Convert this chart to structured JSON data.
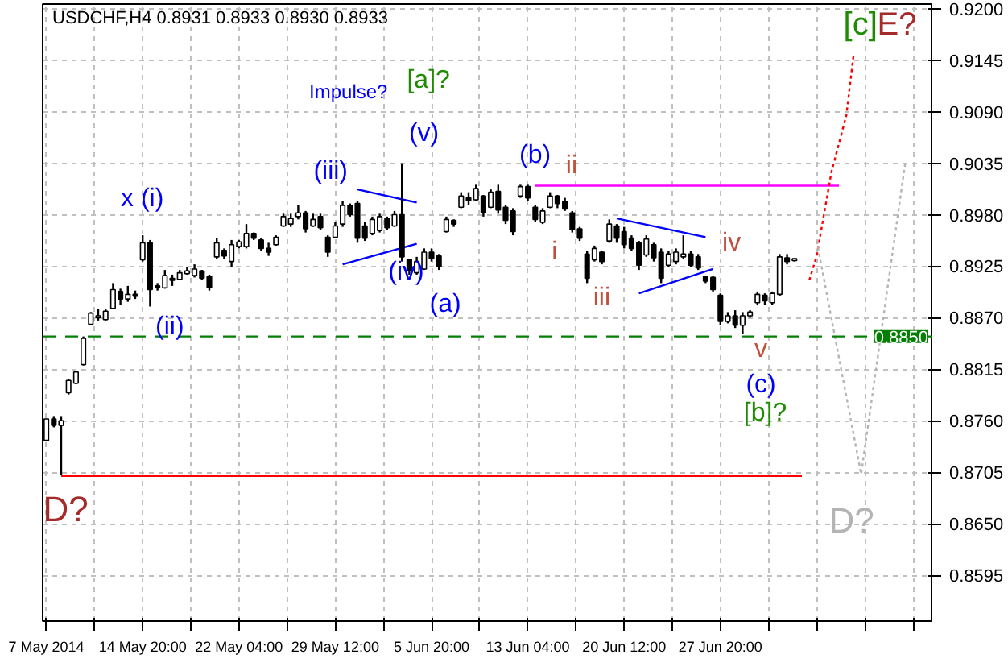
{
  "chart_data": {
    "type": "candlestick",
    "title": "USDCHF,H4  0.8931 0.8933 0.8930 0.8933",
    "categories": [
      "7 May 2014",
      null,
      null,
      null,
      null,
      null,
      null,
      null,
      null,
      null,
      null,
      null,
      null,
      "14 May 20:00",
      null,
      null,
      null,
      null,
      null,
      null,
      null,
      null,
      null,
      null,
      null,
      null,
      "22 May 04:00",
      null,
      null,
      null,
      null,
      null,
      null,
      null,
      null,
      null,
      null,
      null,
      null,
      "29 May 12:00",
      null,
      null,
      null,
      null,
      null,
      null,
      null,
      null,
      null,
      null,
      null,
      null,
      "5 Jun 20:00",
      null,
      null,
      null,
      null,
      null,
      null,
      null,
      null,
      null,
      null,
      null,
      null,
      "13 Jun 04:00",
      null,
      null,
      null,
      null,
      null,
      null,
      null,
      null,
      null,
      null,
      null,
      null,
      "20 Jun 12:00",
      null,
      null,
      null,
      null,
      null,
      null,
      null,
      null,
      null,
      null,
      null,
      null,
      "27 Jun 20:00",
      null,
      null,
      null,
      null,
      null,
      null,
      null,
      null,
      null,
      null,
      null,
      null,
      null,
      null,
      null,
      null,
      null,
      null,
      null,
      null,
      null,
      null,
      null,
      null,
      null,
      null,
      null,
      null
    ],
    "ohlc": [
      [
        0.8739,
        0.8762,
        0.8739,
        0.8762
      ],
      [
        0.8762,
        0.8765,
        0.8753,
        0.8755
      ],
      [
        0.8755,
        0.8765,
        0.8702,
        0.876
      ],
      [
        0.879,
        0.8805,
        0.8788,
        0.8803
      ],
      [
        0.88,
        0.8813,
        0.8799,
        0.8812
      ],
      [
        0.882,
        0.885,
        0.8819,
        0.8848
      ],
      [
        0.8863,
        0.8876,
        0.8862,
        0.8875
      ],
      [
        0.887,
        0.8879,
        0.8867,
        0.8872
      ],
      [
        0.8868,
        0.8879,
        0.8867,
        0.8877
      ],
      [
        0.888,
        0.8907,
        0.8879,
        0.89
      ],
      [
        0.8898,
        0.8901,
        0.8884,
        0.889
      ],
      [
        0.889,
        0.8904,
        0.8887,
        0.8895
      ],
      [
        0.8895,
        0.8899,
        0.889,
        0.8893
      ],
      [
        0.8932,
        0.8958,
        0.893,
        0.895
      ],
      [
        0.895,
        0.8953,
        0.8882,
        0.89
      ],
      [
        0.8904,
        0.8907,
        0.8899,
        0.8902
      ],
      [
        0.8902,
        0.8921,
        0.8901,
        0.8915
      ],
      [
        0.8912,
        0.8916,
        0.8904,
        0.891
      ],
      [
        0.8911,
        0.8921,
        0.891,
        0.8918
      ],
      [
        0.8917,
        0.8924,
        0.8916,
        0.892
      ],
      [
        0.8915,
        0.8927,
        0.8913,
        0.8922
      ],
      [
        0.892,
        0.8921,
        0.891,
        0.8912
      ],
      [
        0.8914,
        0.8916,
        0.8899,
        0.8902
      ],
      [
        0.8935,
        0.8955,
        0.8933,
        0.895
      ],
      [
        0.8942,
        0.8944,
        0.8933,
        0.8936
      ],
      [
        0.893,
        0.8953,
        0.8924,
        0.8948
      ],
      [
        0.8946,
        0.8953,
        0.8944,
        0.8951
      ],
      [
        0.8946,
        0.897,
        0.8944,
        0.896
      ],
      [
        0.896,
        0.8961,
        0.8953,
        0.8955
      ],
      [
        0.8953,
        0.8955,
        0.8941,
        0.8944
      ],
      [
        0.8944,
        0.895,
        0.8936,
        0.894
      ],
      [
        0.8948,
        0.8958,
        0.8947,
        0.8956
      ],
      [
        0.8968,
        0.8981,
        0.8967,
        0.8978
      ],
      [
        0.897,
        0.8981,
        0.8967,
        0.8976
      ],
      [
        0.8978,
        0.899,
        0.8975,
        0.8982
      ],
      [
        0.8982,
        0.8984,
        0.8961,
        0.8965
      ],
      [
        0.8968,
        0.8981,
        0.8967,
        0.8975
      ],
      [
        0.8978,
        0.8981,
        0.8964,
        0.8966
      ],
      [
        0.8956,
        0.8958,
        0.8935,
        0.894
      ],
      [
        0.8956,
        0.8972,
        0.8955,
        0.8968
      ],
      [
        0.897,
        0.8995,
        0.8967,
        0.899
      ],
      [
        0.899,
        0.8992,
        0.8978,
        0.898
      ],
      [
        0.8992,
        0.8995,
        0.895,
        0.8955
      ],
      [
        0.8968,
        0.8972,
        0.8952,
        0.8955
      ],
      [
        0.896,
        0.8978,
        0.8958,
        0.8975
      ],
      [
        0.8963,
        0.8981,
        0.8961,
        0.8978
      ],
      [
        0.8976,
        0.8978,
        0.8964,
        0.8966
      ],
      [
        0.8968,
        0.8984,
        0.8967,
        0.898
      ],
      [
        0.898,
        0.9035,
        0.893,
        0.8935
      ],
      [
        0.8932,
        0.8933,
        0.8916,
        0.892
      ],
      [
        0.8918,
        0.8935,
        0.8916,
        0.893
      ],
      [
        0.8922,
        0.8944,
        0.8921,
        0.894
      ],
      [
        0.894,
        0.8944,
        0.893,
        0.8933
      ],
      [
        0.8936,
        0.8938,
        0.8921,
        0.8925
      ],
      [
        0.8962,
        0.8978,
        0.8961,
        0.8975
      ],
      [
        0.8974,
        0.8975,
        0.8967,
        0.897
      ],
      [
        0.8988,
        0.9004,
        0.8987,
        0.9
      ],
      [
        0.8998,
        0.9004,
        0.899,
        0.8995
      ],
      [
        0.8996,
        0.9012,
        0.8995,
        0.9008
      ],
      [
        0.9,
        0.9001,
        0.8978,
        0.8982
      ],
      [
        0.8988,
        0.9007,
        0.8987,
        0.9004
      ],
      [
        0.9005,
        0.9012,
        0.8981,
        0.8985
      ],
      [
        0.8988,
        0.899,
        0.897,
        0.8974
      ],
      [
        0.8984,
        0.8987,
        0.8958,
        0.8962
      ],
      [
        0.9,
        0.9012,
        0.8998,
        0.901
      ],
      [
        0.901,
        0.9012,
        0.8995,
        0.8998
      ],
      [
        0.8988,
        0.899,
        0.8972,
        0.8975
      ],
      [
        0.8972,
        0.8987,
        0.897,
        0.8984
      ],
      [
        0.8988,
        0.9004,
        0.8987,
        0.9
      ],
      [
        0.9,
        0.9001,
        0.8987,
        0.8992
      ],
      [
        0.8994,
        0.8998,
        0.8984,
        0.8986
      ],
      [
        0.8982,
        0.8984,
        0.8961,
        0.8964
      ],
      [
        0.8965,
        0.8967,
        0.8952,
        0.8955
      ],
      [
        0.8938,
        0.8941,
        0.8907,
        0.8912
      ],
      [
        0.8932,
        0.8947,
        0.893,
        0.8944
      ],
      [
        0.894,
        0.8941,
        0.8927,
        0.893
      ],
      [
        0.8952,
        0.8975,
        0.895,
        0.897
      ],
      [
        0.8968,
        0.897,
        0.895,
        0.8955
      ],
      [
        0.8962,
        0.8967,
        0.8944,
        0.8948
      ],
      [
        0.8955,
        0.8958,
        0.8941,
        0.8944
      ],
      [
        0.895,
        0.8952,
        0.8921,
        0.8926
      ],
      [
        0.8937,
        0.8958,
        0.8935,
        0.8954
      ],
      [
        0.8948,
        0.895,
        0.893,
        0.8934
      ],
      [
        0.894,
        0.8944,
        0.8907,
        0.8912
      ],
      [
        0.8926,
        0.8941,
        0.8924,
        0.8938
      ],
      [
        0.893,
        0.8944,
        0.8927,
        0.894
      ],
      [
        0.8935,
        0.8958,
        0.8933,
        0.8938
      ],
      [
        0.8938,
        0.8941,
        0.8924,
        0.8926
      ],
      [
        0.8935,
        0.8938,
        0.8921,
        0.8923
      ],
      [
        0.8914,
        0.8915,
        0.8907,
        0.8909
      ],
      [
        0.8913,
        0.8915,
        0.8898,
        0.89
      ],
      [
        0.8894,
        0.8896,
        0.8862,
        0.8866
      ],
      [
        0.8866,
        0.8876,
        0.8864,
        0.8872
      ],
      [
        0.8872,
        0.8878,
        0.8859,
        0.8862
      ],
      [
        0.8862,
        0.8876,
        0.8853,
        0.8872
      ],
      [
        0.8872,
        0.8878,
        0.887,
        0.8876
      ],
      [
        0.8886,
        0.8898,
        0.8884,
        0.8895
      ],
      [
        0.8894,
        0.8896,
        0.8884,
        0.8888
      ],
      [
        0.8886,
        0.8898,
        0.8884,
        0.8896
      ],
      [
        0.8895,
        0.8938,
        0.8893,
        0.8935
      ],
      [
        0.8934,
        0.8938,
        0.8927,
        0.893
      ],
      [
        0.8931,
        0.8933,
        0.893,
        0.8933
      ],
      null,
      null,
      null,
      null,
      null,
      null,
      null,
      null,
      null,
      null,
      null,
      null,
      null,
      null,
      null,
      null,
      null,
      null
    ],
    "color": "#000000",
    "series": [
      {
        "type": "line",
        "values": [
          null,
          null,
          null,
          null,
          null,
          null,
          null,
          null,
          null,
          null,
          null,
          null,
          null,
          null,
          null,
          null,
          null,
          null,
          null,
          null,
          null,
          null,
          null,
          null,
          null,
          null,
          null,
          null,
          null,
          null,
          null,
          null,
          null,
          null,
          null,
          null,
          null,
          null,
          null,
          null,
          null,
          null,
          null,
          null,
          null,
          null,
          null,
          null,
          null,
          null,
          null,
          null,
          null,
          null,
          null,
          null,
          null,
          null,
          null,
          null,
          null,
          null,
          null,
          null,
          null,
          null,
          0.9011,
          null,
          null,
          null,
          null,
          null,
          null,
          null,
          null,
          null,
          null,
          null,
          null,
          null,
          null,
          null,
          null,
          null,
          null,
          null,
          null,
          null,
          null,
          null,
          null,
          null,
          null,
          null,
          null,
          null,
          null,
          null,
          null,
          null,
          null,
          null,
          null,
          null,
          null,
          null,
          null,
          0.9011,
          null,
          null,
          null,
          null,
          null,
          null,
          null,
          null,
          null,
          null,
          null,
          null
        ],
        "color": "#ff00ff",
        "line_style": "solid"
      },
      {
        "type": "line",
        "values": [
          null,
          null,
          0.8701,
          null,
          null,
          null,
          null,
          null,
          null,
          null,
          null,
          null,
          null,
          null,
          null,
          null,
          null,
          null,
          null,
          null,
          null,
          null,
          null,
          null,
          null,
          null,
          null,
          null,
          null,
          null,
          null,
          null,
          null,
          null,
          null,
          null,
          null,
          null,
          null,
          null,
          null,
          null,
          null,
          null,
          null,
          null,
          null,
          null,
          null,
          null,
          null,
          null,
          null,
          null,
          null,
          null,
          null,
          null,
          null,
          null,
          null,
          null,
          null,
          null,
          null,
          null,
          null,
          null,
          null,
          null,
          null,
          null,
          null,
          null,
          null,
          null,
          null,
          null,
          null,
          null,
          null,
          null,
          null,
          null,
          null,
          null,
          null,
          null,
          null,
          null,
          null,
          null,
          null,
          null,
          null,
          null,
          null,
          null,
          null,
          null,
          null,
          null,
          0.8701,
          null,
          null,
          null,
          null,
          null,
          null,
          null,
          null,
          null,
          null,
          null,
          null,
          null,
          null,
          null,
          null,
          null
        ],
        "color": "#ff0000",
        "line_style": "solid"
      },
      {
        "type": "line",
        "values": [
          null,
          null,
          null,
          null,
          null,
          null,
          null,
          null,
          null,
          null,
          null,
          null,
          null,
          null,
          null,
          null,
          null,
          null,
          null,
          null,
          null,
          null,
          null,
          null,
          null,
          null,
          null,
          null,
          null,
          null,
          null,
          null,
          null,
          null,
          null,
          null,
          null,
          null,
          null,
          null,
          null,
          null,
          0.9007,
          null,
          null,
          null,
          null,
          null,
          null,
          null,
          0.8993,
          null,
          null,
          null,
          null,
          null,
          null,
          null,
          null,
          null,
          null,
          null,
          null,
          null,
          null,
          null,
          null,
          null,
          null,
          null,
          null,
          null,
          null,
          null,
          null,
          null,
          null,
          null,
          null,
          null,
          null,
          null,
          null,
          null,
          null,
          null,
          null,
          null,
          null,
          null,
          null,
          null,
          null,
          null,
          null,
          null,
          null,
          null,
          null,
          null,
          null,
          null,
          null,
          null,
          null,
          null,
          null,
          null,
          null,
          null,
          null,
          null,
          null,
          null,
          null,
          null,
          null,
          null,
          null,
          null
        ],
        "color": "#0000ff",
        "line_style": "solid"
      },
      {
        "type": "line",
        "values": [
          null,
          null,
          null,
          null,
          null,
          null,
          null,
          null,
          null,
          null,
          null,
          null,
          null,
          null,
          null,
          null,
          null,
          null,
          null,
          null,
          null,
          null,
          null,
          null,
          null,
          null,
          null,
          null,
          null,
          null,
          null,
          null,
          null,
          null,
          null,
          null,
          null,
          null,
          null,
          null,
          0.8927,
          null,
          null,
          null,
          null,
          null,
          null,
          null,
          null,
          null,
          0.8949,
          null,
          null,
          null,
          null,
          null,
          null,
          null,
          null,
          null,
          null,
          null,
          null,
          null,
          null,
          null,
          null,
          null,
          null,
          null,
          null,
          null,
          null,
          null,
          null,
          null,
          null,
          null,
          null,
          null,
          null,
          null,
          null,
          null,
          null,
          null,
          null,
          null,
          null,
          null,
          null,
          null,
          null,
          null,
          null,
          null,
          null,
          null,
          null,
          null,
          null,
          null,
          null,
          null,
          null,
          null,
          null,
          null,
          null,
          null,
          null,
          null,
          null,
          null,
          null,
          null,
          null,
          null,
          null,
          null
        ],
        "color": "#0000ff",
        "line_style": "solid"
      },
      {
        "type": "line",
        "values": [
          null,
          null,
          null,
          null,
          null,
          null,
          null,
          null,
          null,
          null,
          null,
          null,
          null,
          null,
          null,
          null,
          null,
          null,
          null,
          null,
          null,
          null,
          null,
          null,
          null,
          null,
          null,
          null,
          null,
          null,
          null,
          null,
          null,
          null,
          null,
          null,
          null,
          null,
          null,
          null,
          null,
          null,
          null,
          null,
          null,
          null,
          null,
          null,
          null,
          null,
          null,
          null,
          null,
          null,
          null,
          null,
          null,
          null,
          null,
          null,
          null,
          null,
          null,
          null,
          null,
          null,
          null,
          null,
          null,
          null,
          null,
          null,
          null,
          null,
          null,
          null,
          null,
          0.8976,
          null,
          null,
          null,
          null,
          null,
          null,
          null,
          null,
          null,
          null,
          null,
          0.8956,
          null,
          null,
          null,
          null,
          null,
          null,
          null,
          null,
          null,
          null,
          null,
          null,
          null,
          null,
          null,
          null,
          null,
          null,
          null,
          null,
          null,
          null,
          null,
          null,
          null,
          null,
          null,
          null,
          null,
          null
        ],
        "color": "#0000ff",
        "line_style": "solid"
      },
      {
        "type": "line",
        "values": [
          null,
          null,
          null,
          null,
          null,
          null,
          null,
          null,
          null,
          null,
          null,
          null,
          null,
          null,
          null,
          null,
          null,
          null,
          null,
          null,
          null,
          null,
          null,
          null,
          null,
          null,
          null,
          null,
          null,
          null,
          null,
          null,
          null,
          null,
          null,
          null,
          null,
          null,
          null,
          null,
          null,
          null,
          null,
          null,
          null,
          null,
          null,
          null,
          null,
          null,
          null,
          null,
          null,
          null,
          null,
          null,
          null,
          null,
          null,
          null,
          null,
          null,
          null,
          null,
          null,
          null,
          null,
          null,
          null,
          null,
          null,
          null,
          null,
          null,
          null,
          null,
          null,
          null,
          null,
          null,
          0.8896,
          null,
          null,
          null,
          null,
          null,
          null,
          null,
          null,
          null,
          0.8922,
          null,
          null,
          null,
          null,
          null,
          null,
          null,
          null,
          null,
          null,
          null,
          null,
          null,
          null,
          null,
          null,
          null,
          null,
          null,
          null,
          null,
          null,
          null,
          null,
          null,
          null,
          null,
          null,
          null
        ],
        "color": "#0000ff",
        "line_style": "solid"
      },
      {
        "type": "line",
        "values": [
          null,
          null,
          null,
          null,
          null,
          null,
          null,
          null,
          null,
          null,
          null,
          null,
          null,
          null,
          null,
          null,
          null,
          null,
          null,
          null,
          null,
          null,
          null,
          null,
          null,
          null,
          null,
          null,
          null,
          null,
          null,
          null,
          null,
          null,
          null,
          null,
          null,
          null,
          null,
          null,
          null,
          null,
          null,
          null,
          null,
          null,
          null,
          null,
          null,
          null,
          null,
          null,
          null,
          null,
          null,
          null,
          null,
          null,
          null,
          null,
          null,
          null,
          null,
          null,
          null,
          null,
          null,
          null,
          null,
          null,
          null,
          null,
          null,
          null,
          null,
          null,
          null,
          null,
          null,
          null,
          null,
          null,
          null,
          null,
          null,
          null,
          null,
          null,
          null,
          null,
          null,
          null,
          null,
          null,
          null,
          null,
          null,
          null,
          null,
          null,
          null,
          null,
          null,
          0.891,
          0.8936,
          null,
          0.9026,
          null,
          0.9086,
          0.9152,
          null,
          null,
          null,
          null,
          null,
          null,
          null,
          null,
          null,
          null
        ],
        "color": "#ff0000",
        "line_style": "dotted"
      },
      {
        "type": "line",
        "values": [
          null,
          null,
          null,
          null,
          null,
          null,
          null,
          null,
          null,
          null,
          null,
          null,
          null,
          null,
          null,
          null,
          null,
          null,
          null,
          null,
          null,
          null,
          null,
          null,
          null,
          null,
          null,
          null,
          null,
          null,
          null,
          null,
          null,
          null,
          null,
          null,
          null,
          null,
          null,
          null,
          null,
          null,
          null,
          null,
          null,
          null,
          null,
          null,
          null,
          null,
          null,
          null,
          null,
          null,
          null,
          null,
          null,
          null,
          null,
          null,
          null,
          null,
          null,
          null,
          null,
          null,
          null,
          null,
          null,
          null,
          null,
          null,
          null,
          null,
          null,
          null,
          null,
          null,
          null,
          null,
          null,
          null,
          null,
          null,
          null,
          null,
          null,
          null,
          null,
          null,
          null,
          null,
          null,
          null,
          null,
          null,
          null,
          null,
          null,
          null,
          null,
          null,
          null,
          null,
          0.8952,
          null,
          null,
          null,
          null,
          null,
          0.8703,
          null,
          null,
          null,
          null,
          null,
          0.9038,
          null,
          null,
          null
        ],
        "color": "#b4b4b4",
        "line_style": "dotted"
      }
    ],
    "ref_lines": [
      {
        "axis": "y",
        "value": 0.885,
        "label": "0.8850",
        "color": "#007f00",
        "line_style": "dashed"
      }
    ],
    "annotations": [
      "x (i)",
      "(ii)",
      "Impulse?",
      "(iii)",
      "(iv)",
      "(v)",
      "[a]?",
      "(a)",
      "(b)",
      "i",
      "ii",
      "iii",
      "iv",
      "v",
      "(c)",
      "[b]?",
      "[c]",
      "E?",
      "D?",
      "D?"
    ],
    "ylim": [
      0.8546,
      0.9205
    ],
    "yticks": [
      0.8595,
      {
        "value": 0.865,
        "label": "0.8650"
      },
      0.8705,
      {
        "value": 0.876,
        "label": "0.8760"
      },
      0.8815,
      {
        "value": 0.887,
        "label": "0.8870"
      },
      0.8925,
      {
        "value": 0.898,
        "label": "0.8980"
      },
      0.9035,
      {
        "value": 0.909,
        "label": "0.9090"
      },
      0.9145,
      {
        "value": 0.92,
        "label": "0.9200"
      }
    ],
    "grid": true
  }
}
